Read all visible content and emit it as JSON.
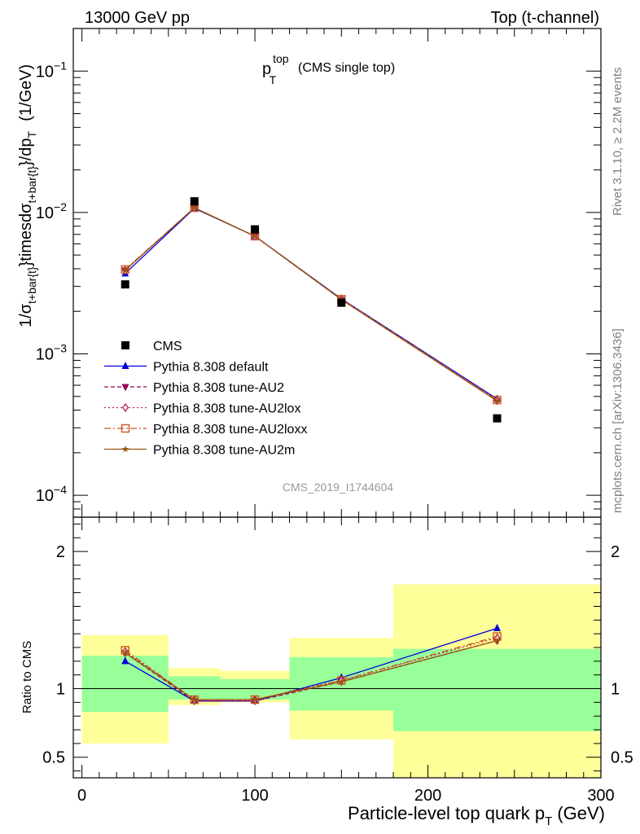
{
  "header": {
    "left": "13000 GeV pp",
    "right": "Top (t-channel)"
  },
  "plot_title": {
    "main": "p",
    "sup": "top",
    "sub": "T",
    "extra": "(CMS single top)"
  },
  "watermark": "CMS_2019_I1744604",
  "side_labels": {
    "rivet": "Rivet 3.1.10, ≥ 2.2M events",
    "mcplots": "mcplots.cern.ch [arXiv:1306.3436]"
  },
  "ylabel_top": {
    "part1": "1/σ",
    "sub1": "t+bar{t}",
    "part2": "}timesdσ",
    "sub2": "t+bar{t}",
    "part3": "}/dp",
    "sub3": "T",
    "unit": "(1/GeV)"
  },
  "ylabel_bottom": "Ratio to CMS",
  "xlabel": {
    "main": "Particle-level top quark p",
    "sub": "T",
    "unit": "(GeV)"
  },
  "colors": {
    "cms": "#000000",
    "default": "#0000dd",
    "au2": "#990055",
    "au2lox": "#bb2244",
    "au2loxx": "#cc5522",
    "au2m": "#995511",
    "band_inner": "#99ff99",
    "band_outer": "#ffff99"
  },
  "chart_data": {
    "type": "line",
    "x_range": [
      -5,
      300
    ],
    "top_panel": {
      "yscale": "log",
      "ylim": [
        7e-05,
        0.2
      ],
      "y_ticks": [
        {
          "value": 0.1,
          "base": "10",
          "exp": "−1"
        },
        {
          "value": 0.01,
          "base": "10",
          "exp": "−2"
        },
        {
          "value": 0.001,
          "base": "10",
          "exp": "−3"
        },
        {
          "value": 0.0001,
          "base": "10",
          "exp": "−4"
        }
      ]
    },
    "bottom_panel": {
      "ylim": [
        0.35,
        2.25
      ],
      "y_ticks": [
        {
          "value": 0.5,
          "label": "0.5"
        },
        {
          "value": 1,
          "label": "1"
        },
        {
          "value": 2,
          "label": "2"
        }
      ],
      "reference": 1
    },
    "x_ticks": [
      {
        "value": 0,
        "label": "0"
      },
      {
        "value": 100,
        "label": "100"
      },
      {
        "value": 200,
        "label": "200"
      },
      {
        "value": 300,
        "label": "300"
      }
    ],
    "bins": [
      {
        "lo": 0,
        "hi": 50
      },
      {
        "lo": 50,
        "hi": 80
      },
      {
        "lo": 80,
        "hi": 120
      },
      {
        "lo": 120,
        "hi": 180
      },
      {
        "lo": 180,
        "hi": 300
      }
    ],
    "x": [
      25,
      65,
      100,
      150,
      240
    ],
    "data": {
      "name": "CMS",
      "values": [
        0.0031,
        0.012,
        0.0076,
        0.0023,
        0.00035
      ]
    },
    "bands": {
      "inner": [
        [
          0.83,
          1.24
        ],
        [
          0.92,
          1.09
        ],
        [
          0.92,
          1.07
        ],
        [
          0.84,
          1.23
        ],
        [
          0.69,
          1.29
        ]
      ],
      "outer": [
        [
          0.6,
          1.39
        ],
        [
          0.88,
          1.15
        ],
        [
          0.9,
          1.13
        ],
        [
          0.63,
          1.37
        ],
        [
          0.35,
          1.76
        ]
      ]
    },
    "series": [
      {
        "name": "Pythia 8.308 default",
        "marker": "triangle",
        "dash": "",
        "values": [
          0.0037,
          0.0107,
          0.0068,
          0.00245,
          0.00048
        ],
        "ratio": [
          1.2,
          0.91,
          0.91,
          1.08,
          1.44
        ]
      },
      {
        "name": "Pythia 8.308 tune-AU2",
        "marker": "triangle-down",
        "dash": "5,3",
        "values": [
          0.0039,
          0.0108,
          0.0068,
          0.00242,
          0.000465
        ],
        "ratio": [
          1.26,
          0.91,
          0.91,
          1.05,
          1.35
        ]
      },
      {
        "name": "Pythia 8.308 tune-AU2lox",
        "marker": "diamond",
        "dash": "2,3",
        "values": [
          0.0039,
          0.0108,
          0.0068,
          0.00243,
          0.00047
        ],
        "ratio": [
          1.27,
          0.92,
          0.92,
          1.06,
          1.37
        ]
      },
      {
        "name": "Pythia 8.308 tune-AU2loxx",
        "marker": "square-open",
        "dash": "8,3,2,3",
        "values": [
          0.00395,
          0.0108,
          0.0068,
          0.00244,
          0.000472
        ],
        "ratio": [
          1.28,
          0.92,
          0.92,
          1.06,
          1.38
        ]
      },
      {
        "name": "Pythia 8.308 tune-AU2m",
        "marker": "star",
        "dash": "",
        "values": [
          0.0039,
          0.0108,
          0.0068,
          0.00242,
          0.000465
        ],
        "ratio": [
          1.26,
          0.92,
          0.92,
          1.05,
          1.35
        ]
      }
    ]
  }
}
